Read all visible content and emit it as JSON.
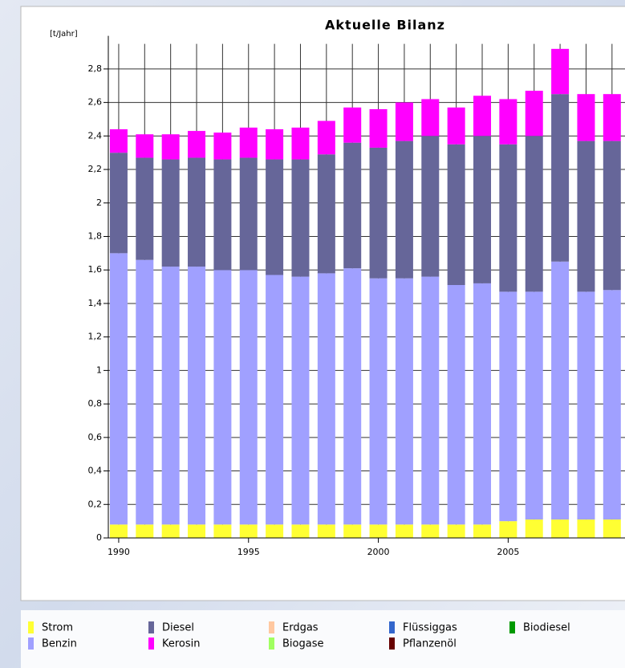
{
  "chart_data": {
    "type": "bar",
    "stacked": true,
    "title": "Aktuelle Bilanz",
    "y_label": "[t/Jahr]",
    "x": [
      1990,
      1991,
      1992,
      1993,
      1994,
      1995,
      1996,
      1997,
      1998,
      1999,
      2000,
      2001,
      2002,
      2003,
      2004,
      2005,
      2006,
      2007,
      2008,
      2009
    ],
    "xlim": [
      1989.6,
      2009.5
    ],
    "xticks": [
      1990,
      1995,
      2000,
      2005
    ],
    "ylim": [
      0,
      2.95
    ],
    "yticks": [
      0,
      {
        "value": 0.2,
        "label": "0,2"
      },
      {
        "value": 0.4,
        "label": "0,4"
      },
      {
        "value": 0.6,
        "label": "0,6"
      },
      {
        "value": 0.8,
        "label": "0,8"
      },
      1,
      {
        "value": 1.2,
        "label": "1,2"
      },
      {
        "value": 1.4,
        "label": "1,4"
      },
      {
        "value": 1.6,
        "label": "1,6"
      },
      {
        "value": 1.8,
        "label": "1,8"
      },
      2,
      {
        "value": 2.2,
        "label": "2,2"
      },
      {
        "value": 2.4,
        "label": "2,4"
      },
      {
        "value": 2.6,
        "label": "2,6"
      },
      {
        "value": 2.8,
        "label": "2,8"
      }
    ],
    "grid": true,
    "series": [
      {
        "name": "Strom",
        "color": "#ffff33",
        "values": [
          0.08,
          0.08,
          0.08,
          0.08,
          0.08,
          0.08,
          0.08,
          0.08,
          0.08,
          0.08,
          0.08,
          0.08,
          0.08,
          0.08,
          0.08,
          0.1,
          0.11,
          0.11,
          0.11,
          0.11
        ]
      },
      {
        "name": "Benzin",
        "color": "#a0a0ff",
        "values": [
          1.62,
          1.58,
          1.54,
          1.54,
          1.52,
          1.52,
          1.49,
          1.48,
          1.5,
          1.53,
          1.47,
          1.47,
          1.48,
          1.43,
          1.44,
          1.37,
          1.36,
          1.54,
          1.36,
          1.37
        ]
      },
      {
        "name": "Diesel",
        "color": "#666699",
        "values": [
          0.6,
          0.61,
          0.64,
          0.65,
          0.66,
          0.67,
          0.69,
          0.7,
          0.71,
          0.75,
          0.78,
          0.82,
          0.84,
          0.84,
          0.88,
          0.88,
          0.93,
          1.0,
          0.9,
          0.89
        ]
      },
      {
        "name": "Kerosin",
        "color": "#ff00ff",
        "values": [
          0.14,
          0.14,
          0.15,
          0.16,
          0.16,
          0.18,
          0.18,
          0.19,
          0.2,
          0.21,
          0.23,
          0.23,
          0.22,
          0.22,
          0.24,
          0.27,
          0.27,
          0.27,
          0.28,
          0.28
        ]
      },
      {
        "name": "Erdgas",
        "color": "#ffc8a0",
        "values": [
          0,
          0,
          0,
          0,
          0,
          0,
          0,
          0,
          0,
          0,
          0,
          0,
          0,
          0,
          0,
          0,
          0,
          0,
          0,
          0
        ]
      },
      {
        "name": "Biogase",
        "color": "#a0ff60",
        "values": [
          0,
          0,
          0,
          0,
          0,
          0,
          0,
          0,
          0,
          0,
          0,
          0,
          0,
          0,
          0,
          0,
          0,
          0,
          0,
          0
        ]
      },
      {
        "name": "Flüssiggas",
        "color": "#3366cc",
        "values": [
          0,
          0,
          0,
          0,
          0,
          0,
          0,
          0,
          0,
          0,
          0,
          0,
          0,
          0,
          0,
          0,
          0,
          0,
          0,
          0
        ]
      },
      {
        "name": "Pflanzenöl",
        "color": "#660000",
        "values": [
          0,
          0,
          0,
          0,
          0,
          0,
          0,
          0,
          0,
          0,
          0,
          0,
          0,
          0,
          0,
          0,
          0,
          0,
          0,
          0
        ]
      },
      {
        "name": "Biodiesel",
        "color": "#009900",
        "values": [
          0,
          0,
          0,
          0,
          0,
          0,
          0,
          0,
          0,
          0,
          0,
          0,
          0,
          0,
          0,
          0,
          0,
          0,
          0,
          0
        ]
      }
    ]
  }
}
